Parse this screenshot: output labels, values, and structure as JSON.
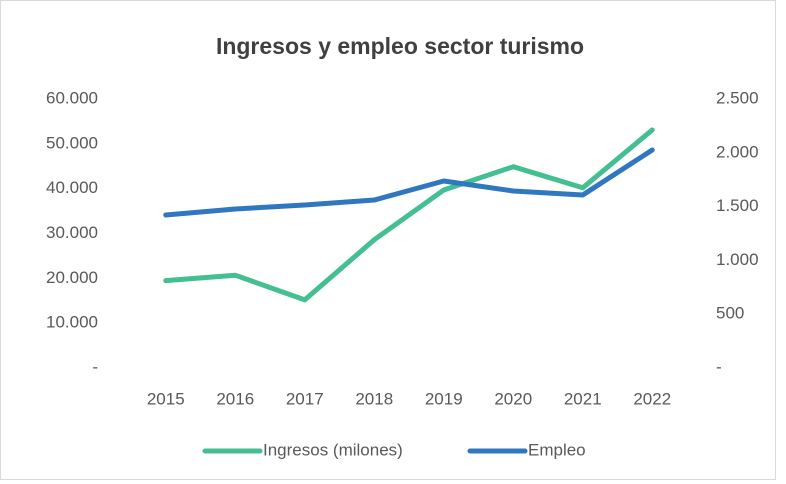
{
  "chart_data": {
    "type": "line",
    "title": "Ingresos y empleo sector turismo",
    "categories": [
      "2015",
      "2016",
      "2017",
      "2018",
      "2019",
      "2020",
      "2021",
      "2022"
    ],
    "series": [
      {
        "name": "Ingresos (milones)",
        "color": "#44bf91",
        "values": [
          19500,
          20700,
          15200,
          28600,
          39700,
          44900,
          40200,
          53100
        ]
      },
      {
        "name": "Empleo",
        "color": "#2f78c0",
        "axis": "y2",
        "values": [
          1422,
          1478,
          1515,
          1561,
          1738,
          1645,
          1608,
          2026
        ]
      }
    ],
    "ylim": [
      0,
      60000
    ],
    "yticks": [
      {
        "value": 0,
        "label": "-"
      },
      {
        "value": 10000,
        "label": "10.000"
      },
      {
        "value": 20000,
        "label": "20.000"
      },
      {
        "value": 30000,
        "label": "30.000"
      },
      {
        "value": 40000,
        "label": "40.000"
      },
      {
        "value": 50000,
        "label": "50.000"
      },
      {
        "value": 60000,
        "label": "60.000"
      }
    ],
    "y2lim": [
      0,
      2500
    ],
    "y2ticks": [
      {
        "value": 0,
        "label": "-"
      },
      500,
      {
        "value": 1000,
        "label": "1.000"
      },
      {
        "value": 1500,
        "label": "1.500"
      },
      {
        "value": 2000,
        "label": "2.000"
      },
      {
        "value": 2500,
        "label": "2.500"
      }
    ],
    "legend": "bottom",
    "grid": false
  }
}
